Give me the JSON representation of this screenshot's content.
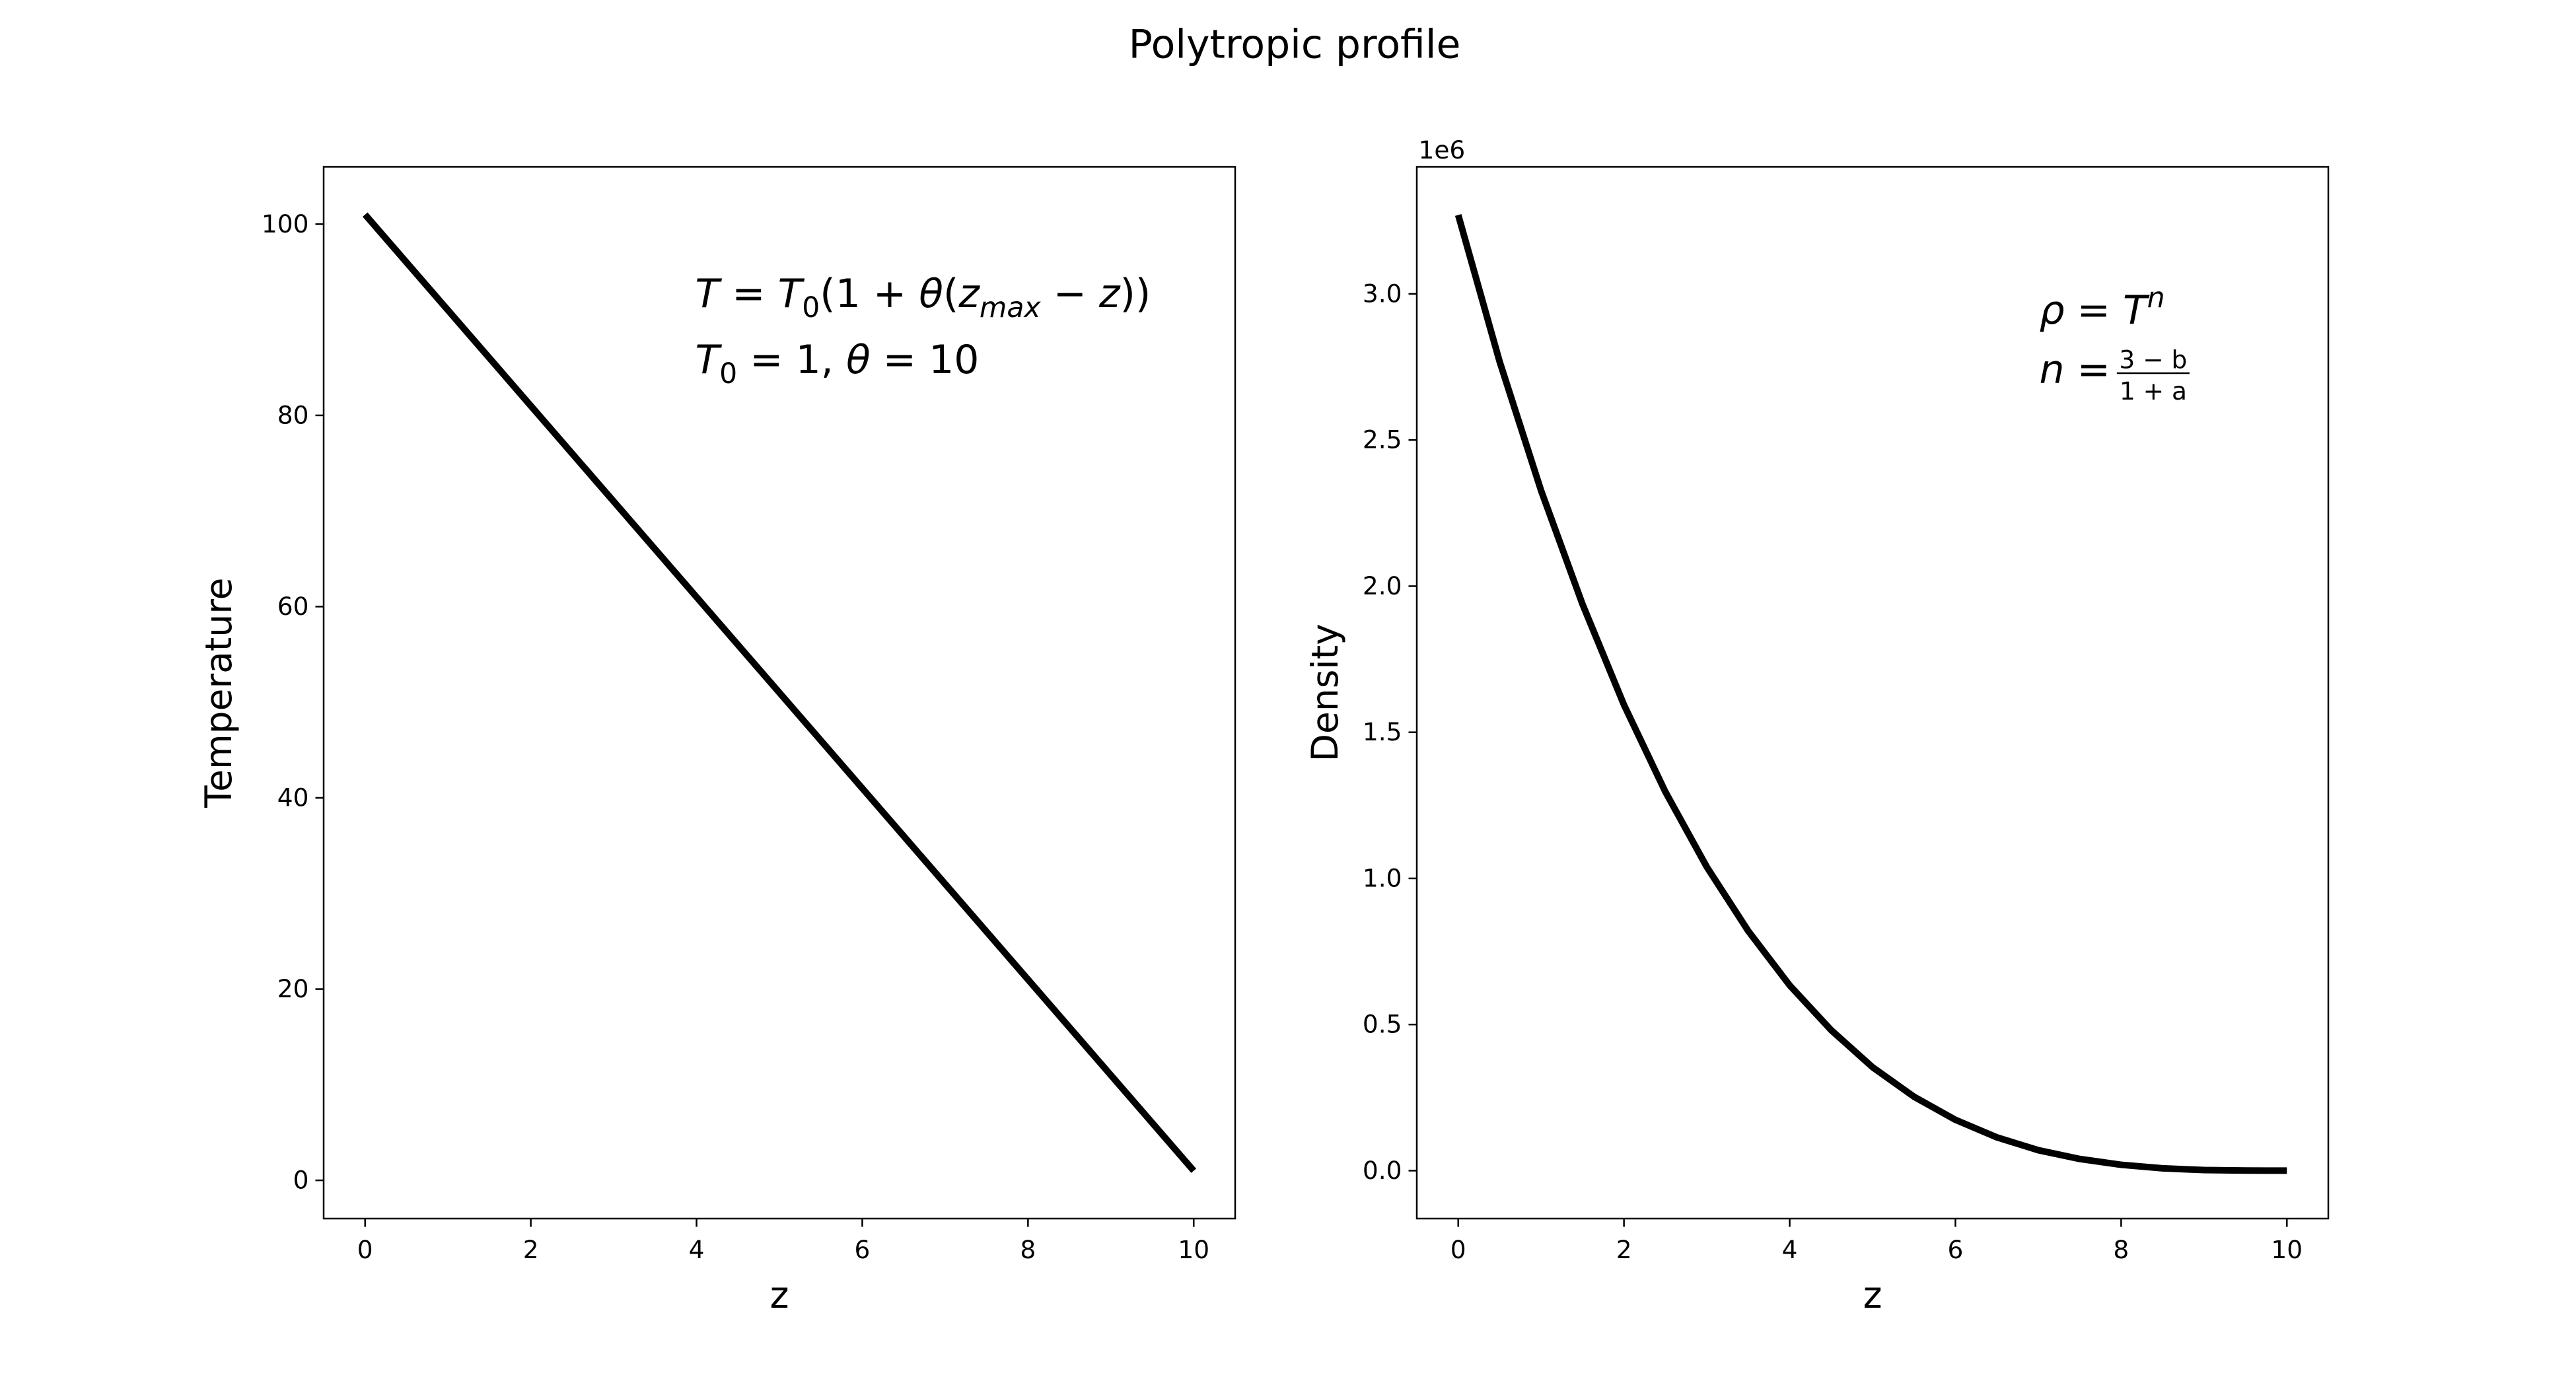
{
  "title": "Polytropic profile",
  "chart_data": [
    {
      "type": "line",
      "xlabel": "z",
      "ylabel": "Temperature",
      "x": [
        0,
        1,
        2,
        3,
        4,
        5,
        6,
        7,
        8,
        9,
        10
      ],
      "series": [
        {
          "name": "Temperature",
          "color": "#000000",
          "values": [
            101,
            91,
            81,
            71,
            61,
            51,
            41,
            31,
            21,
            11,
            1
          ]
        }
      ],
      "xlim": [
        -0.5,
        10.5
      ],
      "ylim": [
        -4,
        106
      ],
      "xticks": [
        0,
        2,
        4,
        6,
        8,
        10
      ],
      "yticks": [
        0,
        20,
        40,
        60,
        80,
        100
      ],
      "annotations": [
        [
          {
            "i": "T"
          },
          " = ",
          {
            "i": "T"
          },
          {
            "sub": "0"
          },
          "(1 + ",
          {
            "i": "θ"
          },
          "(",
          {
            "i": "z"
          },
          {
            "sub": "max"
          },
          " − ",
          {
            "i": "z"
          },
          "))"
        ],
        [
          {
            "i": "T"
          },
          {
            "sub": "0"
          },
          " = 1,  ",
          {
            "i": "θ"
          },
          " = 10"
        ]
      ]
    },
    {
      "type": "line",
      "xlabel": "z",
      "ylabel": "Density",
      "y_offset_label": "1e6",
      "x": [
        0,
        0.5,
        1,
        1.5,
        2,
        2.5,
        3,
        3.5,
        4,
        4.5,
        5,
        5.5,
        6,
        6.5,
        7,
        7.5,
        8,
        8.5,
        9,
        9.5,
        10
      ],
      "series": [
        {
          "name": "Density",
          "color": "#000000",
          "values": [
            3.27,
            2.768,
            2.327,
            1.938,
            1.594,
            1.296,
            1.039,
            0.82,
            0.634,
            0.481,
            0.354,
            0.253,
            0.174,
            0.114,
            0.07,
            0.04,
            0.02,
            0.008,
            0.002,
            0.0003,
            0
          ]
        }
      ],
      "xlim": [
        -0.5,
        10.5
      ],
      "ylim": [
        -0.164,
        3.435
      ],
      "xticks": [
        0,
        2,
        4,
        6,
        8,
        10
      ],
      "yticks": [
        {
          "value": 0,
          "label": "0.0"
        },
        0.5,
        {
          "value": 1,
          "label": "1.0"
        },
        1.5,
        {
          "value": 2,
          "label": "2.0"
        },
        2.5,
        {
          "value": 3,
          "label": "3.0"
        }
      ],
      "annotations": [
        [
          {
            "i": "ρ"
          },
          " = ",
          {
            "i": "T"
          },
          {
            "sup": "n"
          }
        ],
        [
          {
            "i": "n"
          },
          " = ",
          {
            "num": "3 − b",
            "den": "1 + a"
          }
        ]
      ]
    }
  ]
}
